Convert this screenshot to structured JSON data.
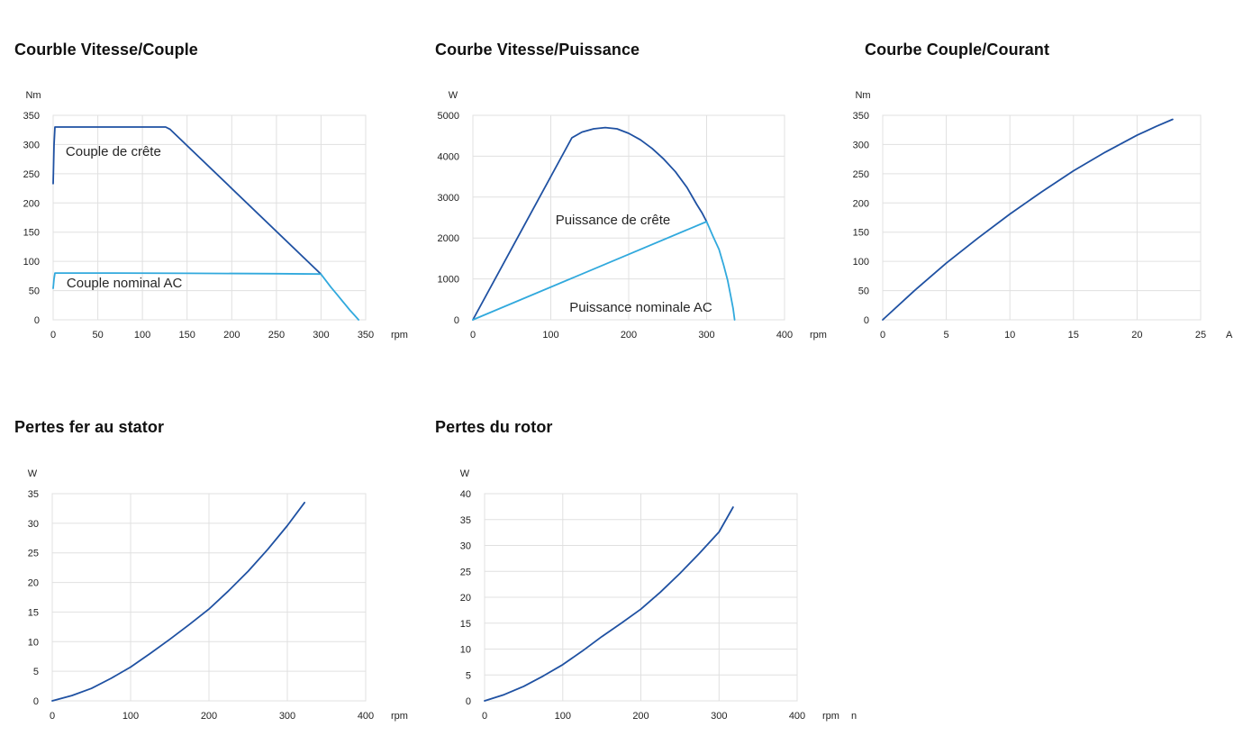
{
  "page": {
    "background": "#ffffff"
  },
  "colors": {
    "series_dark_blue": "#1f51a2",
    "series_light_blue": "#31a9dd",
    "gridline": "#e0e0e0",
    "tick_text": "#1f1f1f",
    "title_text": "#111111"
  },
  "chart_data": [
    {
      "id": "vitesse-couple",
      "type": "line",
      "title": "Courble Vitesse/Couple",
      "xlabel": "rpm",
      "ylabel": "Nm",
      "xlim": [
        0,
        350
      ],
      "ylim": [
        0,
        350
      ],
      "x_ticks": [
        0,
        50,
        100,
        150,
        200,
        250,
        300,
        350
      ],
      "y_ticks": [
        0,
        50,
        100,
        150,
        200,
        250,
        300,
        350
      ],
      "grid": true,
      "legend_position": "inline-labels",
      "series": [
        {
          "name": "Couple de crête",
          "color": "#1f51a2",
          "points": [
            [
              0,
              233
            ],
            [
              1,
              300
            ],
            [
              2,
              330
            ],
            [
              126,
              330
            ],
            [
              131,
              326
            ],
            [
              300,
              78
            ]
          ]
        },
        {
          "name": "Couple nominal AC",
          "color": "#31a9dd",
          "points": [
            [
              0,
              54
            ],
            [
              1,
              70
            ],
            [
              2,
              80
            ],
            [
              60,
              80
            ],
            [
              150,
              79.5
            ],
            [
              250,
              79
            ],
            [
              297,
              78.3
            ],
            [
              300,
              78
            ],
            [
              305,
              68
            ],
            [
              311,
              56
            ],
            [
              318,
              43
            ],
            [
              325,
              30
            ],
            [
              332,
              17
            ],
            [
              338,
              7
            ],
            [
              342,
              0
            ]
          ]
        }
      ],
      "annotations": [
        {
          "text": "Couple de crête",
          "x": 14,
          "y": 287
        },
        {
          "text": "Couple nominal AC",
          "x": 15,
          "y": 62
        }
      ]
    },
    {
      "id": "vitesse-puissance",
      "type": "line",
      "title": "Courbe Vitesse/Puissance",
      "xlabel": "rpm",
      "ylabel": "W",
      "xlim": [
        0,
        400
      ],
      "ylim": [
        0,
        5000
      ],
      "x_ticks": [
        0,
        100,
        200,
        300,
        400
      ],
      "y_ticks": [
        0,
        1000,
        2000,
        3000,
        4000,
        5000
      ],
      "grid": true,
      "legend_position": "inline-labels",
      "series": [
        {
          "name": "Puissance de crête",
          "color": "#1f51a2",
          "points": [
            [
              0,
              0
            ],
            [
              127,
              4450
            ],
            [
              140,
              4590
            ],
            [
              155,
              4670
            ],
            [
              170,
              4700
            ],
            [
              185,
              4670
            ],
            [
              200,
              4560
            ],
            [
              215,
              4400
            ],
            [
              230,
              4190
            ],
            [
              245,
              3930
            ],
            [
              260,
              3620
            ],
            [
              275,
              3230
            ],
            [
              287,
              2830
            ],
            [
              294,
              2620
            ],
            [
              300,
              2400
            ]
          ]
        },
        {
          "name": "Puissance nominale AC",
          "color": "#31a9dd",
          "points": [
            [
              0,
              0
            ],
            [
              300,
              2400
            ],
            [
              308,
              2050
            ],
            [
              316,
              1720
            ],
            [
              322,
              1330
            ],
            [
              327,
              960
            ],
            [
              331,
              580
            ],
            [
              334,
              280
            ],
            [
              336,
              0
            ]
          ]
        }
      ],
      "annotations": [
        {
          "text": "Puissance de crête",
          "x": 106,
          "y": 2420
        },
        {
          "text": "Puissance nominale AC",
          "x": 124,
          "y": 290
        }
      ]
    },
    {
      "id": "couple-courant",
      "type": "line",
      "title": "Courbe Couple/Courant",
      "xlabel": "A",
      "ylabel": "Nm",
      "xlim": [
        0,
        25
      ],
      "ylim": [
        0,
        350
      ],
      "x_ticks": [
        0,
        5,
        10,
        15,
        20,
        25
      ],
      "y_ticks": [
        0,
        50,
        100,
        150,
        200,
        250,
        300,
        350
      ],
      "grid": true,
      "legend_position": "none",
      "series": [
        {
          "name": "Couple",
          "color": "#1f51a2",
          "points": [
            [
              0,
              0
            ],
            [
              2.5,
              50
            ],
            [
              5,
              97
            ],
            [
              7.5,
              140
            ],
            [
              10,
              181
            ],
            [
              12.5,
              219
            ],
            [
              15,
              255
            ],
            [
              17.5,
              287
            ],
            [
              20,
              316
            ],
            [
              21.5,
              331
            ],
            [
              22.8,
              343
            ]
          ]
        }
      ],
      "annotations": []
    },
    {
      "id": "pertes-fer-stator",
      "type": "line",
      "title": "Pertes fer au stator",
      "xlabel": "rpm",
      "ylabel": "W",
      "xlim": [
        0,
        400
      ],
      "ylim": [
        0,
        35
      ],
      "x_ticks": [
        0,
        100,
        200,
        300,
        400
      ],
      "y_ticks": [
        0,
        5,
        10,
        15,
        20,
        25,
        30,
        35
      ],
      "grid": true,
      "legend_position": "none",
      "series": [
        {
          "name": "Pertes fer au stator",
          "color": "#1f51a2",
          "points": [
            [
              0,
              0
            ],
            [
              25,
              0.9
            ],
            [
              50,
              2.1
            ],
            [
              75,
              3.8
            ],
            [
              100,
              5.7
            ],
            [
              125,
              8
            ],
            [
              150,
              10.4
            ],
            [
              175,
              12.9
            ],
            [
              200,
              15.5
            ],
            [
              225,
              18.6
            ],
            [
              250,
              21.9
            ],
            [
              275,
              25.6
            ],
            [
              300,
              29.6
            ],
            [
              322,
              33.5
            ]
          ]
        }
      ],
      "annotations": []
    },
    {
      "id": "pertes-rotor",
      "type": "line",
      "title": "Pertes du rotor",
      "xlabel": "rpm",
      "xlabel_suffix": "n",
      "ylabel": "W",
      "xlim": [
        0,
        400
      ],
      "ylim": [
        0,
        40
      ],
      "x_ticks": [
        0,
        100,
        200,
        300,
        400
      ],
      "y_ticks": [
        0,
        5,
        10,
        15,
        20,
        25,
        30,
        35,
        40
      ],
      "grid": true,
      "legend_position": "none",
      "series": [
        {
          "name": "Pertes du rotor",
          "color": "#1f51a2",
          "points": [
            [
              0,
              0
            ],
            [
              25,
              1.2
            ],
            [
              50,
              2.8
            ],
            [
              75,
              4.8
            ],
            [
              100,
              7
            ],
            [
              125,
              9.6
            ],
            [
              150,
              12.4
            ],
            [
              175,
              15
            ],
            [
              200,
              17.7
            ],
            [
              225,
              21
            ],
            [
              250,
              24.6
            ],
            [
              275,
              28.5
            ],
            [
              300,
              32.6
            ],
            [
              318,
              37.4
            ]
          ]
        }
      ],
      "annotations": []
    }
  ]
}
